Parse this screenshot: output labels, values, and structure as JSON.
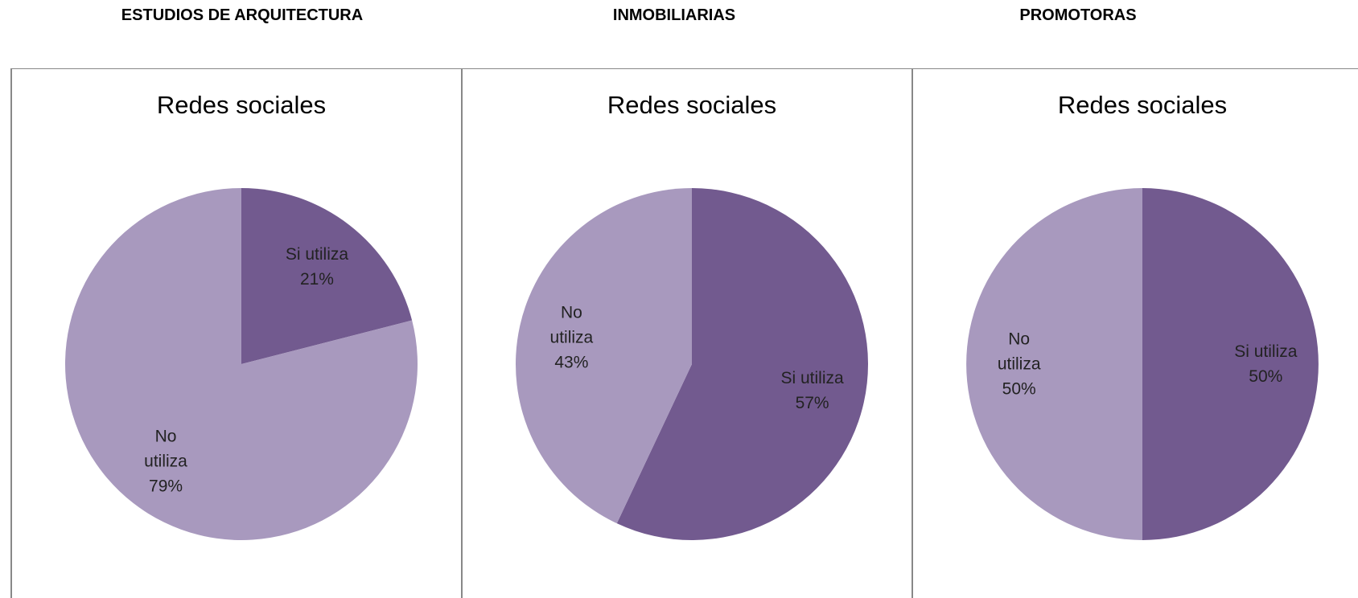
{
  "chart_data": [
    {
      "type": "pie",
      "heading": "ESTUDIOS DE ARQUITECTURA",
      "title": "Redes sociales",
      "categories": [
        "Si utiliza",
        "No utiliza"
      ],
      "values": [
        21,
        79
      ],
      "value_labels": [
        "21%",
        "79%"
      ],
      "colors": [
        "#725a8f",
        "#a899be"
      ]
    },
    {
      "type": "pie",
      "heading": "INMOBILIARIAS",
      "title": "Redes sociales",
      "categories": [
        "Si utiliza",
        "No utiliza"
      ],
      "values": [
        57,
        43
      ],
      "value_labels": [
        "57%",
        "43%"
      ],
      "colors": [
        "#725a8f",
        "#a899be"
      ]
    },
    {
      "type": "pie",
      "heading": "PROMOTORAS",
      "title": "Redes sociales",
      "categories": [
        "Si utiliza",
        "No utiliza"
      ],
      "values": [
        50,
        50
      ],
      "value_labels": [
        "50%",
        "50%"
      ],
      "colors": [
        "#725a8f",
        "#a899be"
      ]
    }
  ]
}
